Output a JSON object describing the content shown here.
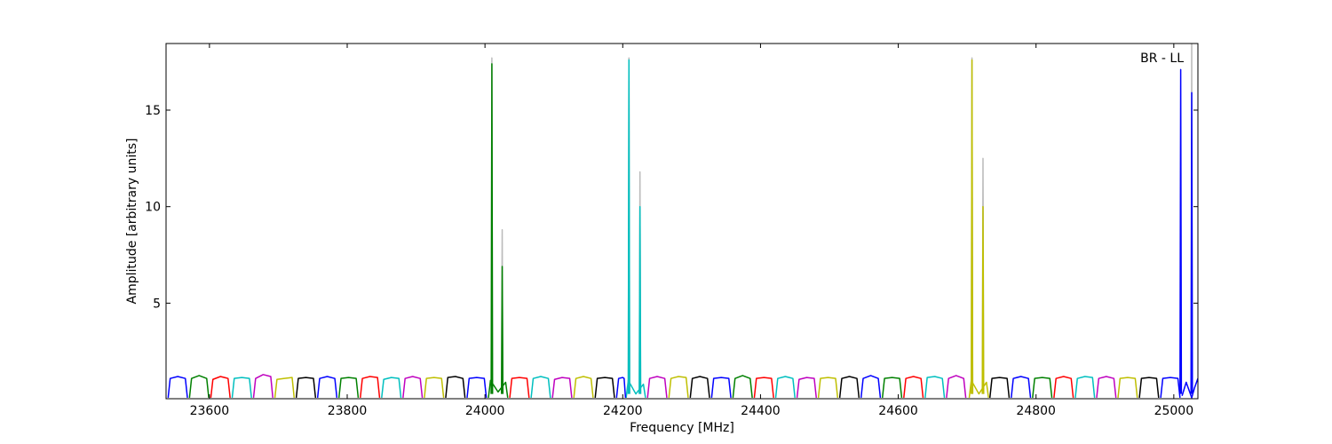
{
  "chart_data": {
    "type": "line",
    "annotation": "BR - LL",
    "xlabel": "Frequency [MHz]",
    "ylabel": "Amplitude [arbitrary units]",
    "xlim": [
      23537,
      25035
    ],
    "ylim": [
      0.05,
      18.45
    ],
    "xticks": [
      23600,
      23800,
      24000,
      24200,
      24400,
      24600,
      24800,
      25000
    ],
    "yticks": [
      5,
      10,
      15
    ],
    "series": [
      {
        "color": "#0000ff",
        "x": [
          23540,
          23543,
          23554,
          23565,
          23568
        ],
        "values": [
          0.1,
          1.1,
          1.2,
          1.1,
          0.1
        ]
      },
      {
        "color": "#008000",
        "x": [
          23571,
          23574,
          23585,
          23596,
          23599
        ],
        "values": [
          0.1,
          1.1,
          1.25,
          1.1,
          0.1
        ]
      },
      {
        "color": "#ff0000",
        "x": [
          23602,
          23605,
          23616,
          23627,
          23630
        ],
        "values": [
          0.1,
          1.05,
          1.2,
          1.1,
          0.1
        ]
      },
      {
        "color": "#00bfbf",
        "x": [
          23633,
          23636,
          23647,
          23658,
          23661
        ],
        "values": [
          0.1,
          1.1,
          1.15,
          1.1,
          0.1
        ]
      },
      {
        "color": "#bf00bf",
        "x": [
          23664,
          23667,
          23678,
          23689,
          23692
        ],
        "values": [
          0.1,
          1.1,
          1.3,
          1.2,
          0.1
        ]
      },
      {
        "color": "#bfbf00",
        "x": [
          23695,
          23698,
          23709,
          23720,
          23723
        ],
        "values": [
          0.1,
          1.05,
          1.1,
          1.15,
          0.1
        ]
      },
      {
        "color": "#000000",
        "x": [
          23726,
          23729,
          23740,
          23751,
          23754
        ],
        "values": [
          0.1,
          1.1,
          1.15,
          1.1,
          0.1
        ]
      },
      {
        "color": "#0000ff",
        "x": [
          23757,
          23760,
          23771,
          23782,
          23785
        ],
        "values": [
          0.1,
          1.1,
          1.2,
          1.1,
          0.1
        ]
      },
      {
        "color": "#008000",
        "x": [
          23788,
          23791,
          23802,
          23813,
          23816
        ],
        "values": [
          0.1,
          1.1,
          1.15,
          1.1,
          0.1
        ]
      },
      {
        "color": "#ff0000",
        "x": [
          23819,
          23822,
          23833,
          23844,
          23847
        ],
        "values": [
          0.1,
          1.1,
          1.2,
          1.15,
          0.1
        ]
      },
      {
        "color": "#00bfbf",
        "x": [
          23850,
          23853,
          23864,
          23875,
          23878
        ],
        "values": [
          0.1,
          1.05,
          1.15,
          1.1,
          0.1
        ]
      },
      {
        "color": "#bf00bf",
        "x": [
          23881,
          23884,
          23895,
          23906,
          23909
        ],
        "values": [
          0.1,
          1.1,
          1.2,
          1.1,
          0.1
        ]
      },
      {
        "color": "#bfbf00",
        "x": [
          23912,
          23915,
          23926,
          23937,
          23940
        ],
        "values": [
          0.1,
          1.1,
          1.15,
          1.1,
          0.1
        ]
      },
      {
        "color": "#000000",
        "x": [
          23943,
          23946,
          23957,
          23968,
          23971
        ],
        "values": [
          0.1,
          1.15,
          1.2,
          1.1,
          0.1
        ]
      },
      {
        "color": "#0000ff",
        "x": [
          23974,
          23977,
          23988,
          23999,
          24002
        ],
        "values": [
          0.1,
          1.1,
          1.15,
          1.1,
          0.1
        ]
      },
      {
        "color": "#008000",
        "x": [
          24005,
          24008,
          24019,
          24030,
          24033
        ],
        "values": [
          0.1,
          1.0,
          0.4,
          0.9,
          0.1
        ]
      },
      {
        "color": "#ff0000",
        "x": [
          24036,
          24039,
          24050,
          24061,
          24064
        ],
        "values": [
          0.1,
          1.1,
          1.15,
          1.1,
          0.1
        ]
      },
      {
        "color": "#00bfbf",
        "x": [
          24067,
          24070,
          24081,
          24092,
          24095
        ],
        "values": [
          0.1,
          1.1,
          1.2,
          1.1,
          0.1
        ]
      },
      {
        "color": "#bf00bf",
        "x": [
          24098,
          24101,
          24112,
          24123,
          24126
        ],
        "values": [
          0.1,
          1.05,
          1.15,
          1.1,
          0.1
        ]
      },
      {
        "color": "#bfbf00",
        "x": [
          24129,
          24132,
          24143,
          24154,
          24157
        ],
        "values": [
          0.1,
          1.1,
          1.2,
          1.1,
          0.1
        ]
      },
      {
        "color": "#000000",
        "x": [
          24160,
          24163,
          24174,
          24185,
          24188
        ],
        "values": [
          0.1,
          1.1,
          1.15,
          1.1,
          0.1
        ]
      },
      {
        "color": "#00bfbf",
        "x": [
          24205,
          24208,
          24219,
          24230,
          24233
        ],
        "values": [
          0.1,
          1.0,
          0.3,
          0.8,
          0.1
        ]
      },
      {
        "color": "#0000ff",
        "x": [
          24191,
          24194,
          24200,
          24202,
          24204
        ],
        "values": [
          0.1,
          1.1,
          1.15,
          1.1,
          0.1
        ]
      },
      {
        "color": "#bf00bf",
        "x": [
          24236,
          24239,
          24250,
          24261,
          24264
        ],
        "values": [
          0.1,
          1.1,
          1.2,
          1.1,
          0.1
        ]
      },
      {
        "color": "#bfbf00",
        "x": [
          24267,
          24270,
          24281,
          24292,
          24295
        ],
        "values": [
          0.1,
          1.1,
          1.2,
          1.15,
          0.1
        ]
      },
      {
        "color": "#000000",
        "x": [
          24298,
          24301,
          24312,
          24323,
          24326
        ],
        "values": [
          0.1,
          1.1,
          1.2,
          1.1,
          0.1
        ]
      },
      {
        "color": "#0000ff",
        "x": [
          24329,
          24332,
          24343,
          24354,
          24357
        ],
        "values": [
          0.1,
          1.1,
          1.15,
          1.1,
          0.1
        ]
      },
      {
        "color": "#008000",
        "x": [
          24360,
          24363,
          24374,
          24385,
          24388
        ],
        "values": [
          0.1,
          1.1,
          1.25,
          1.1,
          0.1
        ]
      },
      {
        "color": "#ff0000",
        "x": [
          24391,
          24394,
          24405,
          24416,
          24419
        ],
        "values": [
          0.1,
          1.1,
          1.15,
          1.1,
          0.1
        ]
      },
      {
        "color": "#00bfbf",
        "x": [
          24422,
          24425,
          24436,
          24447,
          24450
        ],
        "values": [
          0.1,
          1.1,
          1.2,
          1.1,
          0.1
        ]
      },
      {
        "color": "#bf00bf",
        "x": [
          24453,
          24456,
          24467,
          24478,
          24481
        ],
        "values": [
          0.1,
          1.05,
          1.15,
          1.1,
          0.1
        ]
      },
      {
        "color": "#bfbf00",
        "x": [
          24484,
          24487,
          24498,
          24509,
          24512
        ],
        "values": [
          0.1,
          1.1,
          1.15,
          1.1,
          0.1
        ]
      },
      {
        "color": "#000000",
        "x": [
          24515,
          24518,
          24529,
          24540,
          24543
        ],
        "values": [
          0.1,
          1.1,
          1.2,
          1.1,
          0.1
        ]
      },
      {
        "color": "#0000ff",
        "x": [
          24546,
          24549,
          24560,
          24571,
          24574
        ],
        "values": [
          0.1,
          1.1,
          1.25,
          1.1,
          0.1
        ]
      },
      {
        "color": "#008000",
        "x": [
          24577,
          24580,
          24591,
          24602,
          24605
        ],
        "values": [
          0.1,
          1.1,
          1.15,
          1.1,
          0.1
        ]
      },
      {
        "color": "#ff0000",
        "x": [
          24608,
          24611,
          24622,
          24633,
          24636
        ],
        "values": [
          0.1,
          1.1,
          1.2,
          1.1,
          0.1
        ]
      },
      {
        "color": "#00bfbf",
        "x": [
          24639,
          24642,
          24653,
          24664,
          24667
        ],
        "values": [
          0.1,
          1.15,
          1.2,
          1.1,
          0.1
        ]
      },
      {
        "color": "#bf00bf",
        "x": [
          24670,
          24673,
          24684,
          24695,
          24698
        ],
        "values": [
          0.1,
          1.1,
          1.25,
          1.1,
          0.1
        ]
      },
      {
        "color": "#bfbf00",
        "x": [
          24703,
          24706,
          24717,
          24728,
          24731
        ],
        "values": [
          0.1,
          1.0,
          0.3,
          0.9,
          0.1
        ]
      },
      {
        "color": "#000000",
        "x": [
          24733,
          24736,
          24747,
          24758,
          24761
        ],
        "values": [
          0.1,
          1.1,
          1.15,
          1.1,
          0.1
        ]
      },
      {
        "color": "#0000ff",
        "x": [
          24764,
          24767,
          24778,
          24789,
          24792
        ],
        "values": [
          0.1,
          1.1,
          1.2,
          1.1,
          0.1
        ]
      },
      {
        "color": "#008000",
        "x": [
          24795,
          24798,
          24809,
          24820,
          24823
        ],
        "values": [
          0.1,
          1.1,
          1.15,
          1.1,
          0.1
        ]
      },
      {
        "color": "#ff0000",
        "x": [
          24826,
          24829,
          24840,
          24851,
          24854
        ],
        "values": [
          0.1,
          1.1,
          1.2,
          1.1,
          0.1
        ]
      },
      {
        "color": "#00bfbf",
        "x": [
          24857,
          24860,
          24871,
          24882,
          24885
        ],
        "values": [
          0.1,
          1.1,
          1.2,
          1.15,
          0.1
        ]
      },
      {
        "color": "#bf00bf",
        "x": [
          24888,
          24891,
          24902,
          24913,
          24916
        ],
        "values": [
          0.1,
          1.1,
          1.2,
          1.1,
          0.1
        ]
      },
      {
        "color": "#bfbf00",
        "x": [
          24919,
          24922,
          24933,
          24944,
          24947
        ],
        "values": [
          0.1,
          1.1,
          1.15,
          1.1,
          0.1
        ]
      },
      {
        "color": "#000000",
        "x": [
          24950,
          24953,
          24964,
          24975,
          24978
        ],
        "values": [
          0.1,
          1.1,
          1.15,
          1.1,
          0.1
        ]
      },
      {
        "color": "#0000ff",
        "x": [
          24981,
          24984,
          24995,
          25006,
          25009
        ],
        "values": [
          0.1,
          1.1,
          1.15,
          1.1,
          0.1
        ]
      },
      {
        "color": "#0000ff",
        "x": [
          25012,
          25018,
          25026,
          25030,
          25035
        ],
        "values": [
          0.2,
          0.9,
          0.1,
          0.6,
          1.1
        ]
      },
      {
        "color": "#bbbbbb",
        "x": [
          24009,
          24010,
          24011
        ],
        "values": [
          0.3,
          17.7,
          0.3
        ]
      },
      {
        "color": "#bbbbbb",
        "x": [
          24024,
          24025,
          24026
        ],
        "values": [
          0.3,
          8.8,
          0.3
        ]
      },
      {
        "color": "#bbbbbb",
        "x": [
          24208,
          24209,
          24210
        ],
        "values": [
          0.3,
          17.7,
          0.3
        ]
      },
      {
        "color": "#bbbbbb",
        "x": [
          24224,
          24225,
          24226
        ],
        "values": [
          0.3,
          11.8,
          0.3
        ]
      },
      {
        "color": "#bbbbbb",
        "x": [
          24706,
          24707,
          24708
        ],
        "values": [
          0.3,
          17.7,
          0.3
        ]
      },
      {
        "color": "#bbbbbb",
        "x": [
          24722,
          24723,
          24724
        ],
        "values": [
          0.3,
          12.5,
          0.3
        ]
      },
      {
        "color": "#bbbbbb",
        "x": [
          25025,
          25026,
          25027
        ],
        "values": [
          0.3,
          18.45,
          0.3
        ]
      },
      {
        "color": "#008000",
        "x": [
          24009,
          24010,
          24011
        ],
        "values": [
          0.3,
          17.4,
          0.3
        ]
      },
      {
        "color": "#008000",
        "x": [
          24024,
          24025,
          24026
        ],
        "values": [
          0.3,
          6.9,
          0.3
        ]
      },
      {
        "color": "#00bfbf",
        "x": [
          24208,
          24209,
          24210
        ],
        "values": [
          0.3,
          17.6,
          0.3
        ]
      },
      {
        "color": "#00bfbf",
        "x": [
          24224,
          24225,
          24226
        ],
        "values": [
          0.3,
          10.0,
          0.3
        ]
      },
      {
        "color": "#bfbf00",
        "x": [
          24706,
          24707,
          24708
        ],
        "values": [
          0.3,
          17.6,
          0.3
        ]
      },
      {
        "color": "#bfbf00",
        "x": [
          24722,
          24723,
          24724
        ],
        "values": [
          0.3,
          10.0,
          0.3
        ]
      },
      {
        "color": "#0000ff",
        "x": [
          25009,
          25010,
          25011
        ],
        "values": [
          0.3,
          17.1,
          0.3
        ]
      },
      {
        "color": "#0000ff",
        "x": [
          25025,
          25026,
          25027
        ],
        "values": [
          0.3,
          15.9,
          0.3
        ]
      }
    ]
  }
}
